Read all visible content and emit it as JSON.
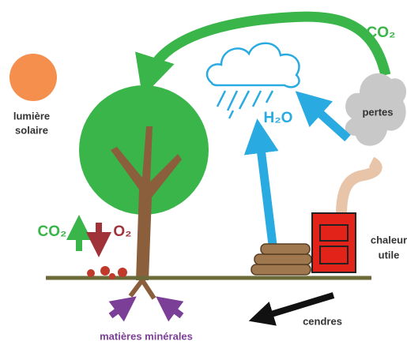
{
  "labels": {
    "sun": [
      "lumière",
      "solaire"
    ],
    "co2_top": "CO₂",
    "h2o": "H₂O",
    "losses": "pertes",
    "heat": [
      "chaleur",
      "utile"
    ],
    "co2_left": "CO₂",
    "o2": "O₂",
    "ashes": "cendres",
    "minerals": "matières minérales"
  }
}
